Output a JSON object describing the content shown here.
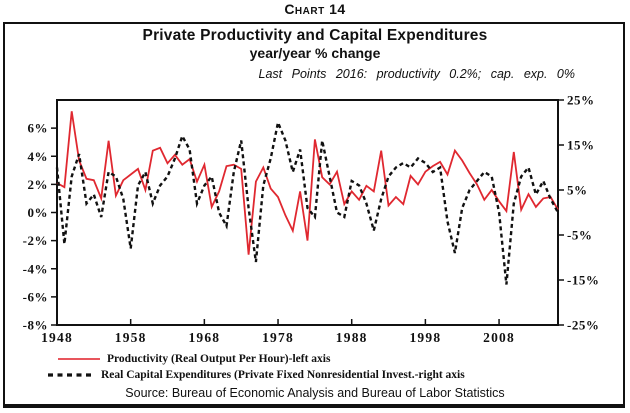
{
  "page": {
    "chart_label": "Chart 14",
    "source": "Source: Bureau of Economic Analysis and Bureau of Labor Statistics"
  },
  "header": {
    "title": "Private Productivity and Capital Expenditures",
    "subtitle": "year/year % change",
    "note": "Last Points 2016: productivity 0.2%; cap. exp. 0%"
  },
  "legend": {
    "items": [
      {
        "label": "Productivity (Real Output Per Hour)-left axis",
        "style": "solid",
        "color": "#e02830"
      },
      {
        "label": "Real Capital Expenditures (Private Fixed Nonresidential Invest.-right axis",
        "style": "dashed",
        "color": "#111111"
      }
    ]
  },
  "chart_data": {
    "type": "line",
    "title": "Private Productivity and Capital Expenditures",
    "subtitle": "year/year % change",
    "grid": false,
    "legend_position": "bottom-left",
    "x": [
      1948,
      1949,
      1950,
      1951,
      1952,
      1953,
      1954,
      1955,
      1956,
      1957,
      1958,
      1959,
      1960,
      1961,
      1962,
      1963,
      1964,
      1965,
      1966,
      1967,
      1968,
      1969,
      1970,
      1971,
      1972,
      1973,
      1974,
      1975,
      1976,
      1977,
      1978,
      1979,
      1980,
      1981,
      1982,
      1983,
      1984,
      1985,
      1986,
      1987,
      1988,
      1989,
      1990,
      1991,
      1992,
      1993,
      1994,
      1995,
      1996,
      1997,
      1998,
      1999,
      2000,
      2001,
      2002,
      2003,
      2004,
      2005,
      2006,
      2007,
      2008,
      2009,
      2010,
      2011,
      2012,
      2013,
      2014,
      2015,
      2016
    ],
    "series": [
      {
        "name": "Productivity (Real Output Per Hour)",
        "axis": "left",
        "color": "#e02830",
        "style": "solid",
        "last_point_note": "2016: 0.2%",
        "values": [
          2.1,
          1.8,
          7.2,
          3.7,
          2.4,
          2.3,
          1.0,
          5.1,
          1.2,
          2.3,
          2.7,
          3.1,
          1.6,
          4.4,
          4.6,
          3.5,
          4.1,
          3.4,
          3.8,
          2.2,
          3.4,
          0.4,
          1.5,
          3.3,
          3.4,
          3.1,
          -3.0,
          2.2,
          3.2,
          1.7,
          1.1,
          -0.2,
          -1.3,
          1.5,
          -2.0,
          5.2,
          2.5,
          2.0,
          2.9,
          0.6,
          1.5,
          0.9,
          1.9,
          1.5,
          4.4,
          0.5,
          1.1,
          0.6,
          2.6,
          2.0,
          2.9,
          3.3,
          3.6,
          2.7,
          4.4,
          3.7,
          2.8,
          2.0,
          0.9,
          1.6,
          0.8,
          0.1,
          4.3,
          0.2,
          1.3,
          0.4,
          1.0,
          1.1,
          0.2
        ]
      },
      {
        "name": "Real Capital Expenditures (Private Fixed Nonresidential Invest.)",
        "axis": "right",
        "color": "#111111",
        "style": "dashed",
        "last_point_note": "2016: 0%",
        "values": [
          10,
          -7,
          8,
          13,
          2,
          4,
          -1,
          9,
          8,
          3,
          -8,
          6,
          9,
          2,
          6,
          8,
          12,
          17,
          14,
          2,
          6,
          8,
          0,
          -3,
          9,
          16,
          1,
          -11,
          6,
          12,
          20,
          16,
          9,
          14,
          1,
          -1,
          16,
          8,
          0,
          -1,
          7,
          6,
          2,
          -4,
          3,
          8,
          10,
          11,
          10,
          12,
          11,
          9,
          10,
          -2,
          -9,
          1,
          5,
          7,
          9,
          8,
          0,
          -16,
          2,
          8,
          10,
          4,
          7,
          3,
          0
        ]
      }
    ],
    "left_axis": {
      "range": [
        -8,
        8
      ],
      "tick_values": [
        6,
        4,
        2,
        0,
        -2,
        -4,
        -6,
        -8
      ],
      "tick_labels": [
        "6%",
        "4%",
        "2%",
        "0%",
        "-2%",
        "-4%",
        "-6%",
        "-8%"
      ]
    },
    "right_axis": {
      "range": [
        -25,
        25
      ],
      "tick_values": [
        25,
        15,
        5,
        -5,
        -15,
        -25
      ],
      "tick_labels": [
        "25%",
        "15%",
        "5%",
        "-5%",
        "-15%",
        "-25%"
      ]
    },
    "x_axis": {
      "label_years": [
        1948,
        1958,
        1968,
        1978,
        1988,
        1998,
        2008
      ],
      "tick_years": [
        1958,
        1968,
        1978,
        1988,
        1998,
        2008
      ]
    }
  }
}
